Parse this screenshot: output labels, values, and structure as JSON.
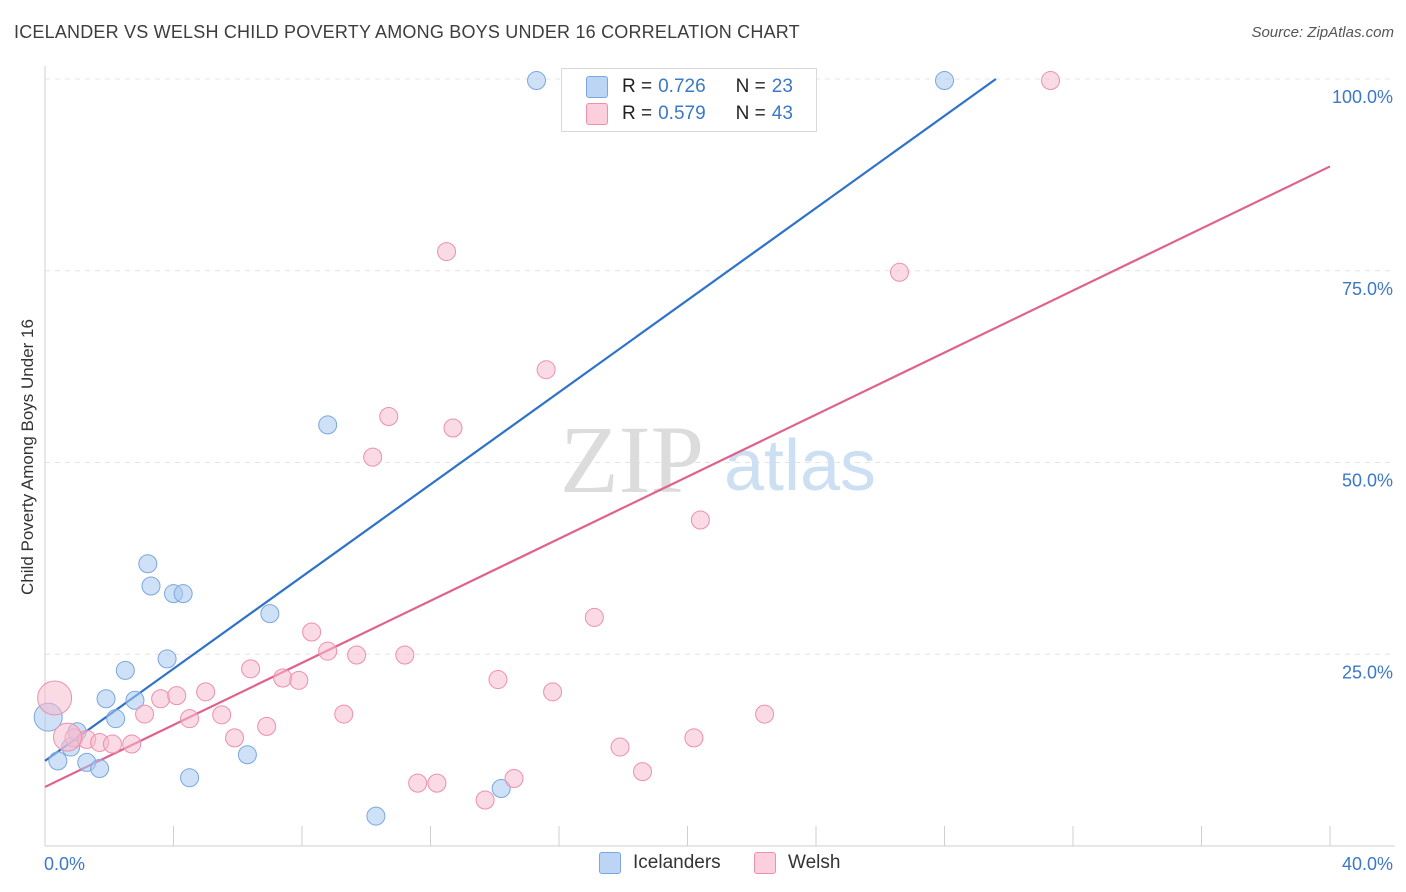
{
  "title": "ICELANDER VS WELSH CHILD POVERTY AMONG BOYS UNDER 16 CORRELATION CHART",
  "source": "Source: ZipAtlas.com",
  "watermark": {
    "zip": "ZIP",
    "atlas": "atlas"
  },
  "colors": {
    "blue_fill": "#a8c8f0",
    "blue_stroke": "#7aa7de",
    "blue_line": "#2f72c9",
    "pink_fill": "#f6bccd",
    "pink_stroke": "#ee8fab",
    "pink_line": "#e0628c",
    "tick_label": "#3b78c8",
    "grid": "#e4e4e4"
  },
  "legend": {
    "rows": [
      {
        "r_label": "R =",
        "r_value": "0.726",
        "n_label": "N =",
        "n_value": "23"
      },
      {
        "r_label": "R =",
        "r_value": "0.579",
        "n_label": "N =",
        "n_value": "43"
      }
    ]
  },
  "bottom_legend": {
    "icelanders": "Icelanders",
    "welsh": "Welsh"
  },
  "chart_data": {
    "type": "scatter",
    "xlabel": "",
    "ylabel": "Child Poverty Among Boys Under 16",
    "xlim": [
      0,
      40
    ],
    "ylim": [
      0,
      100
    ],
    "x_tick_labels": [
      "0.0%",
      "40.0%"
    ],
    "y_tick_labels": [
      "100.0%",
      "75.0%",
      "50.0%",
      "25.0%"
    ],
    "y_tick_values": [
      100,
      75,
      50,
      25
    ],
    "grid": "horizontal dashed",
    "legend_position": "top-center",
    "series": [
      {
        "name": "Icelanders",
        "color": "blue",
        "points": [
          [
            0.1,
            16.8
          ],
          [
            0.4,
            11.1
          ],
          [
            0.8,
            12.9
          ],
          [
            1.0,
            14.9
          ],
          [
            1.3,
            10.9
          ],
          [
            1.7,
            10.1
          ],
          [
            1.9,
            19.2
          ],
          [
            2.2,
            16.6
          ],
          [
            2.5,
            22.9
          ],
          [
            2.8,
            19.0
          ],
          [
            3.2,
            36.8
          ],
          [
            3.3,
            33.9
          ],
          [
            3.8,
            24.4
          ],
          [
            4.0,
            32.9
          ],
          [
            4.3,
            32.9
          ],
          [
            4.5,
            8.9
          ],
          [
            6.3,
            11.9
          ],
          [
            7.0,
            30.3
          ],
          [
            8.8,
            54.9
          ],
          [
            10.3,
            3.9
          ],
          [
            14.2,
            7.5
          ],
          [
            15.3,
            99.8
          ],
          [
            28.0,
            99.8
          ]
        ],
        "trend": {
          "x": [
            0,
            29.6
          ],
          "y": [
            11.1,
            100
          ]
        }
      },
      {
        "name": "Welsh",
        "color": "pink",
        "points": [
          [
            0.3,
            19.3
          ],
          [
            0.9,
            14.1
          ],
          [
            1.3,
            13.9
          ],
          [
            1.7,
            13.5
          ],
          [
            2.1,
            13.3
          ],
          [
            2.7,
            13.3
          ],
          [
            3.1,
            17.2
          ],
          [
            3.6,
            19.2
          ],
          [
            4.1,
            19.6
          ],
          [
            4.5,
            16.6
          ],
          [
            5.0,
            20.1
          ],
          [
            5.5,
            17.1
          ],
          [
            5.9,
            14.1
          ],
          [
            6.4,
            23.1
          ],
          [
            6.9,
            15.6
          ],
          [
            7.4,
            21.9
          ],
          [
            7.9,
            21.6
          ],
          [
            8.3,
            27.9
          ],
          [
            8.8,
            25.4
          ],
          [
            9.3,
            17.2
          ],
          [
            9.7,
            24.9
          ],
          [
            10.2,
            50.7
          ],
          [
            10.7,
            56.0
          ],
          [
            11.2,
            24.9
          ],
          [
            11.6,
            8.2
          ],
          [
            12.2,
            8.2
          ],
          [
            12.7,
            54.5
          ],
          [
            12.5,
            77.5
          ],
          [
            13.7,
            6.0
          ],
          [
            14.1,
            21.7
          ],
          [
            14.6,
            8.8
          ],
          [
            15.6,
            62.1
          ],
          [
            15.8,
            20.1
          ],
          [
            17.1,
            29.8
          ],
          [
            17.9,
            12.9
          ],
          [
            18.6,
            9.7
          ],
          [
            20.2,
            14.1
          ],
          [
            20.4,
            42.5
          ],
          [
            22.4,
            17.2
          ],
          [
            22.8,
            99.8
          ],
          [
            26.6,
            74.8
          ],
          [
            31.3,
            99.8
          ],
          [
            0.7,
            14.2
          ]
        ],
        "trend": {
          "x": [
            0,
            40
          ],
          "y": [
            7.7,
            88.6
          ]
        }
      }
    ]
  }
}
